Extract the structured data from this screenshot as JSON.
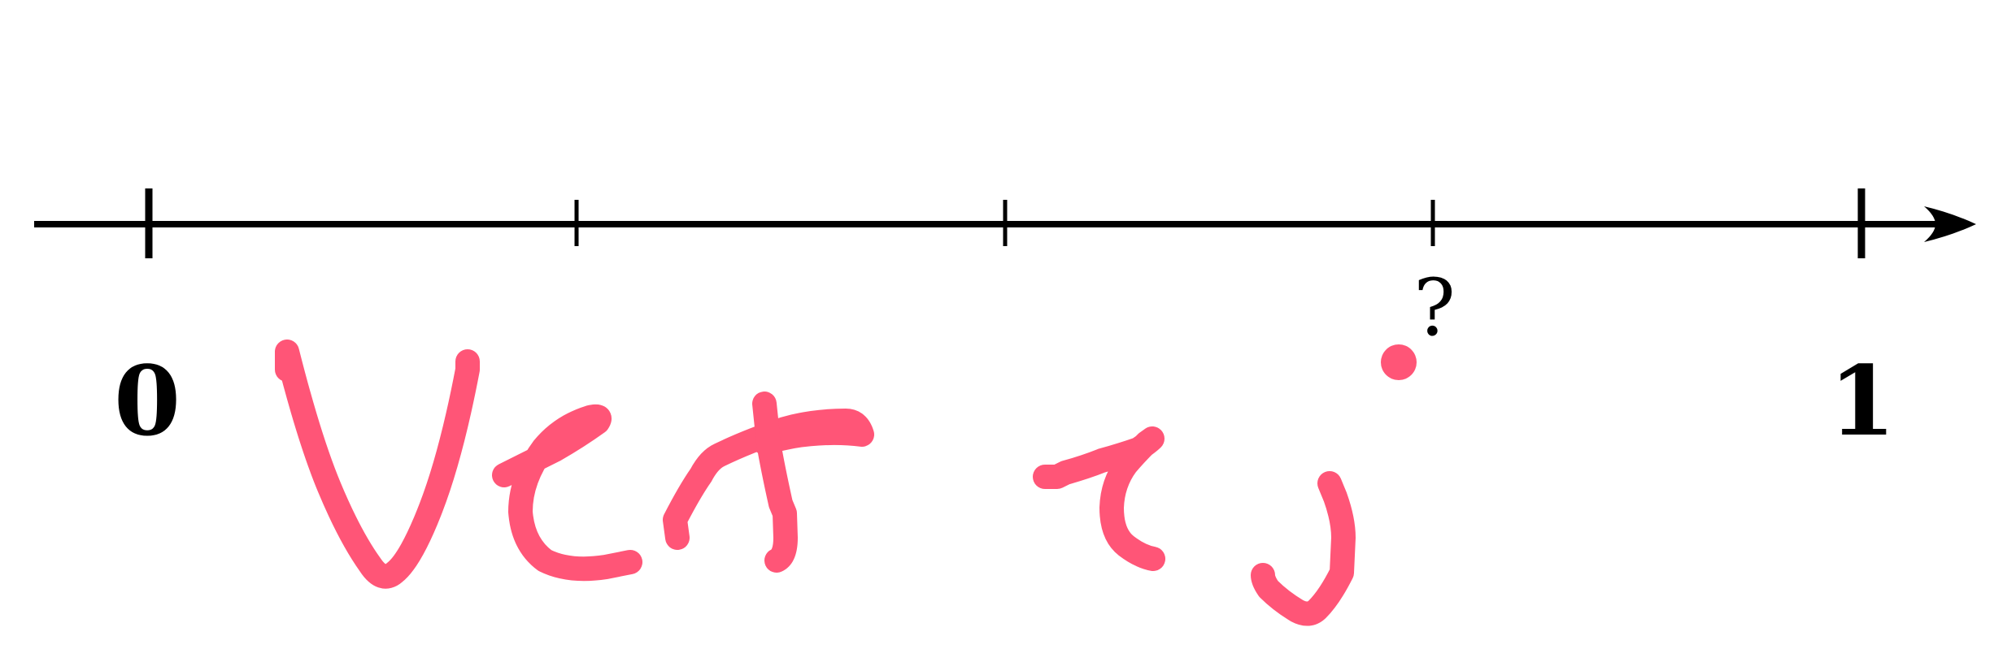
{
  "number_line": {
    "start_value": "0",
    "end_value": "1",
    "divisions": 4,
    "unknown_tick_label": "?",
    "unknown_tick_index": 3,
    "axis_color": "#000000"
  },
  "annotation": {
    "ink_color": "#ff5577",
    "description_name": "handwritten-scribble"
  }
}
